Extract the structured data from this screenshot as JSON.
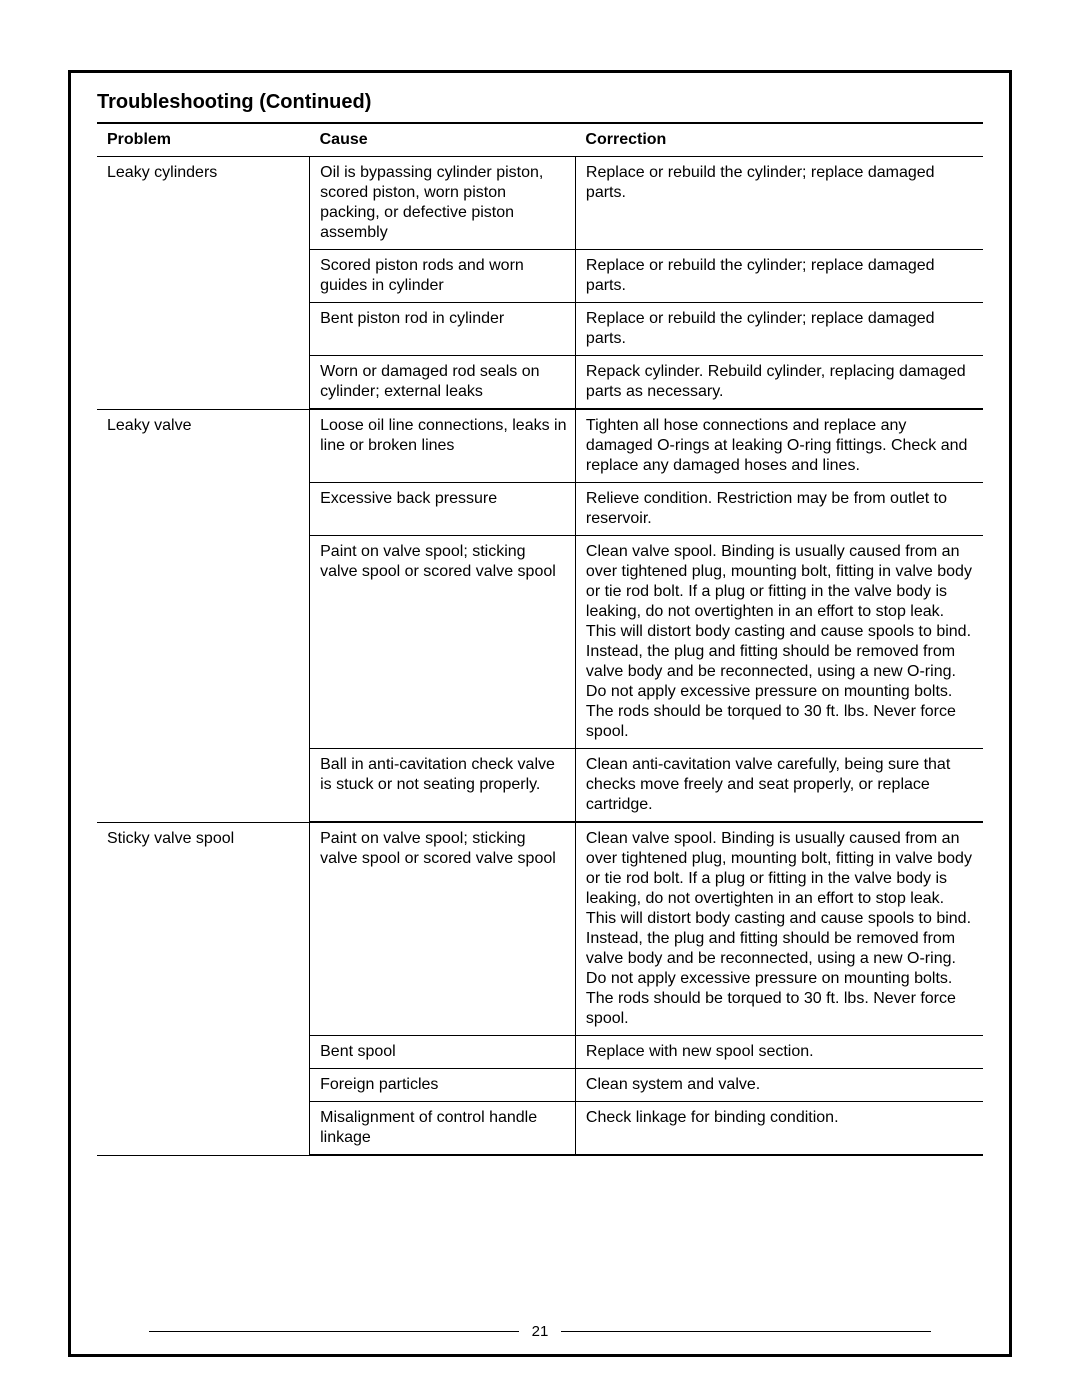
{
  "title": "Troubleshooting (Continued)",
  "page_number": "21",
  "columns": [
    "Problem",
    "Cause",
    "Correction"
  ],
  "sections": [
    {
      "problem": "Leaky cylinders",
      "rows": [
        {
          "cause": "Oil is bypassing cylinder piston, scored piston, worn piston packing, or defective piston assembly",
          "correction": "Replace or rebuild the cylinder; replace damaged parts."
        },
        {
          "cause": "Scored piston rods and worn guides in cylinder",
          "correction": "Replace or rebuild the cylinder; replace damaged parts."
        },
        {
          "cause": "Bent piston rod in cylinder",
          "correction": "Replace or rebuild the cylinder; replace damaged parts."
        },
        {
          "cause": "Worn or damaged rod seals on cylinder; external leaks",
          "correction": "Repack cylinder.  Rebuild cylinder, replacing damaged parts as necessary."
        }
      ]
    },
    {
      "problem": "Leaky valve",
      "rows": [
        {
          "cause": "Loose oil line connections, leaks in line or broken lines",
          "correction": "Tighten all hose connections and replace any damaged O-rings at leaking O-ring fittings.  Check and replace any damaged hoses and lines."
        },
        {
          "cause": "Excessive back pressure",
          "correction": "Relieve condition.  Restriction may be from outlet to reservoir."
        },
        {
          "cause": "Paint on valve spool; sticking valve spool or scored valve spool",
          "correction": "Clean valve spool.  Binding is usually caused from an over tightened plug, mounting bolt, fitting in valve body or tie rod bolt. If a plug or fitting in the valve body is leaking, do not overtighten in an effort to stop leak.  This will distort body casting and cause spools to bind.  Instead, the plug and fitting should be removed from valve body and be reconnected, using a new O-ring.  Do not apply excessive pressure on mounting bolts.  The rods should be torqued to 30 ft. lbs.  Never force spool."
        },
        {
          "cause": "Ball in anti-cavitation check valve  is stuck or not seating properly.",
          "correction": "Clean anti-cavitation valve carefully, being sure that checks move freely and seat properly, or replace cartridge."
        }
      ]
    },
    {
      "problem": "Sticky valve spool",
      "rows": [
        {
          "cause": "Paint on valve spool; sticking valve spool or scored valve spool",
          "correction": "Clean valve spool.  Binding is usually caused from an over tightened plug, mounting bolt, fitting in valve body or tie rod bolt. If a plug or fitting in the valve body is leaking, do not overtighten in an effort to stop leak.  This will distort body casting and cause spools to bind.  Instead, the plug and fitting should be removed from valve body and be reconnected, using a new O-ring.  Do not apply excessive pressure on mounting bolts.  The rods should be torqued to 30 ft. lbs.  Never force spool."
        },
        {
          "cause": "Bent spool",
          "correction": "Replace with new spool section."
        },
        {
          "cause": "Foreign particles",
          "correction": "Clean system and valve."
        },
        {
          "cause": "Misalignment of control handle linkage",
          "correction": "Check linkage for binding condition."
        }
      ]
    }
  ]
}
